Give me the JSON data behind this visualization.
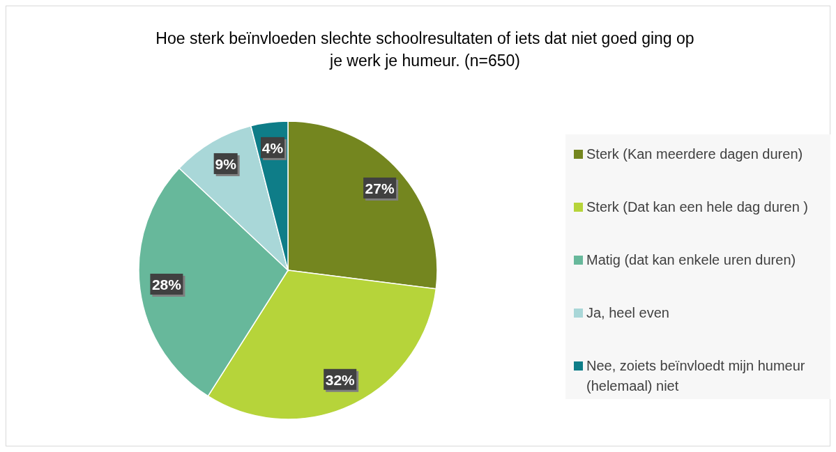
{
  "chart_data": {
    "type": "pie",
    "title": "Hoe sterk beïnvloeden slechte schoolresultaten of iets dat niet goed ging op je werk je humeur. (n=650)",
    "categories": [
      "Sterk (Kan meerdere dagen duren)",
      "Sterk (Dat kan een hele dag duren )",
      "Matig (dat kan enkele uren duren)",
      "Ja, heel even",
      "Nee, zoiets beïnvloedt mijn humeur (helemaal) niet"
    ],
    "values": [
      27,
      32,
      28,
      9,
      4
    ],
    "colors": [
      "#74861f",
      "#b6d43a",
      "#67b89b",
      "#a9d7d8",
      "#0e7d88"
    ],
    "value_labels": [
      "27%",
      "32%",
      "28%",
      "9%",
      "4%"
    ],
    "legend": "right"
  }
}
